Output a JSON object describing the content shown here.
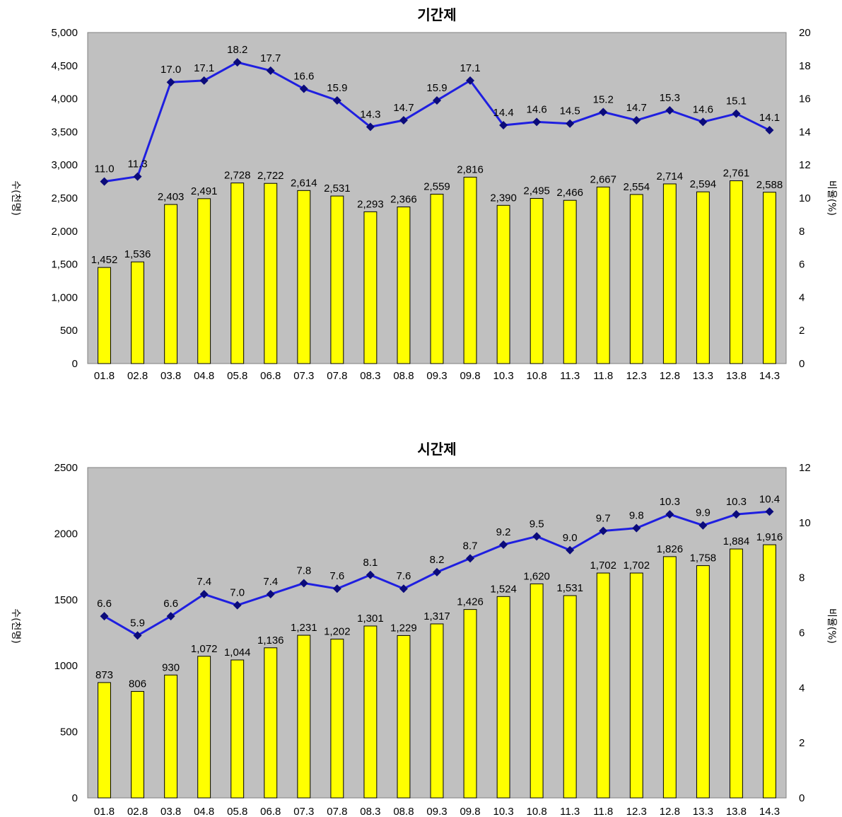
{
  "chart_data": [
    {
      "type": "bar",
      "title": "기간제",
      "categories": [
        "01.8",
        "02.8",
        "03.8",
        "04.8",
        "05.8",
        "06.8",
        "07.3",
        "07.8",
        "08.3",
        "08.8",
        "09.3",
        "09.8",
        "10.3",
        "10.8",
        "11.3",
        "11.8",
        "12.3",
        "12.8",
        "13.3",
        "13.8",
        "14.3"
      ],
      "series": [
        {
          "values": [
            1452,
            1536,
            2403,
            2491,
            2728,
            2722,
            2614,
            2531,
            2293,
            2366,
            2559,
            2816,
            2390,
            2495,
            2466,
            2667,
            2554,
            2714,
            2594,
            2761,
            2588
          ],
          "labels": [
            "1,452",
            "1,536",
            "2,403",
            "2,491",
            "2,728",
            "2,722",
            "2,614",
            "2,531",
            "2,293",
            "2,366",
            "2,559",
            "2,816",
            "2,390",
            "2,495",
            "2,466",
            "2,667",
            "2,554",
            "2,714",
            "2,594",
            "2,761",
            "2,588"
          ],
          "axis": "left",
          "kind": "bar",
          "color": "#ffff00"
        },
        {
          "values": [
            11.0,
            11.3,
            17.0,
            17.1,
            18.2,
            17.7,
            16.6,
            15.9,
            14.3,
            14.7,
            15.9,
            17.1,
            14.4,
            14.6,
            14.5,
            15.2,
            14.7,
            15.3,
            14.6,
            15.1,
            14.1
          ],
          "labels": [
            "11.0",
            "11.3",
            "17.0",
            "17.1",
            "18.2",
            "17.7",
            "16.6",
            "15.9",
            "14.3",
            "14.7",
            "15.9",
            "17.1",
            "14.4",
            "14.6",
            "14.5",
            "15.2",
            "14.7",
            "15.3",
            "14.6",
            "15.1",
            "14.1"
          ],
          "axis": "right",
          "kind": "line",
          "color": "#1f1fe0"
        }
      ],
      "ylabel": "수(천명)",
      "y2label": "비율(%)",
      "ylim": [
        0,
        5000
      ],
      "yticks": [
        "0",
        "500",
        "1,000",
        "1,500",
        "2,000",
        "2,500",
        "3,000",
        "3,500",
        "4,000",
        "4,500",
        "5,000"
      ],
      "y2lim": [
        0,
        20
      ],
      "y2ticks": [
        "0",
        "2",
        "4",
        "6",
        "8",
        "10",
        "12",
        "14",
        "16",
        "18",
        "20"
      ],
      "grid": false,
      "background": "#c0c0c0"
    },
    {
      "type": "bar",
      "title": "시간제",
      "categories": [
        "01.8",
        "02.8",
        "03.8",
        "04.8",
        "05.8",
        "06.8",
        "07.3",
        "07.8",
        "08.3",
        "08.8",
        "09.3",
        "09.8",
        "10.3",
        "10.8",
        "11.3",
        "11.8",
        "12.3",
        "12.8",
        "13.3",
        "13.8",
        "14.3"
      ],
      "series": [
        {
          "values": [
            873,
            806,
            930,
            1072,
            1044,
            1136,
            1231,
            1202,
            1301,
            1229,
            1317,
            1426,
            1524,
            1620,
            1531,
            1702,
            1702,
            1826,
            1758,
            1884,
            1916
          ],
          "labels": [
            "873",
            "806",
            "930",
            "1,072",
            "1,044",
            "1,136",
            "1,231",
            "1,202",
            "1,301",
            "1,229",
            "1,317",
            "1,426",
            "1,524",
            "1,620",
            "1,531",
            "1,702",
            "1,702",
            "1,826",
            "1,758",
            "1,884",
            "1,916"
          ],
          "axis": "left",
          "kind": "bar",
          "color": "#ffff00"
        },
        {
          "values": [
            6.6,
            5.9,
            6.6,
            7.4,
            7.0,
            7.4,
            7.8,
            7.6,
            8.1,
            7.6,
            8.2,
            8.7,
            9.2,
            9.5,
            9.0,
            9.7,
            9.8,
            10.3,
            9.9,
            10.3,
            10.4
          ],
          "labels": [
            "6.6",
            "5.9",
            "6.6",
            "7.4",
            "7.0",
            "7.4",
            "7.8",
            "7.6",
            "8.1",
            "7.6",
            "8.2",
            "8.7",
            "9.2",
            "9.5",
            "9.0",
            "9.7",
            "9.8",
            "10.3",
            "9.9",
            "10.3",
            "10.4"
          ],
          "axis": "right",
          "kind": "line",
          "color": "#1f1fe0"
        }
      ],
      "ylabel": "수(천명)",
      "y2label": "비율(%)",
      "ylim": [
        0,
        2500
      ],
      "yticks": [
        "0",
        "500",
        "1000",
        "1500",
        "2000",
        "2500"
      ],
      "y2lim": [
        0,
        12
      ],
      "y2ticks": [
        "0",
        "2",
        "4",
        "6",
        "8",
        "10",
        "12"
      ],
      "grid": false,
      "background": "#c0c0c0"
    }
  ]
}
